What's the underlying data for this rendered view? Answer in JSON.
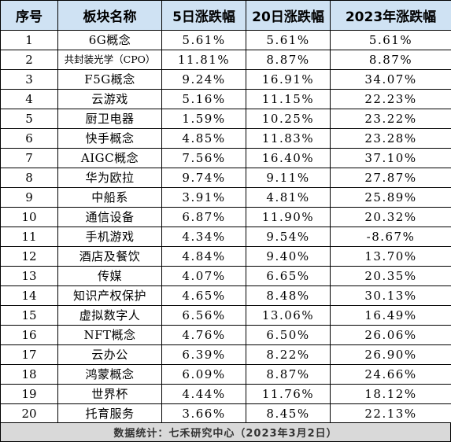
{
  "table": {
    "headers": [
      "序号",
      "板块名称",
      "5日涨跌幅",
      "20日涨跌幅",
      "2023年涨跌幅"
    ],
    "rows": [
      {
        "index": "1",
        "name": "6G概念",
        "d5": "5.61%",
        "d20": "5.61%",
        "ytd": "5.61%"
      },
      {
        "index": "2",
        "name": "共封装光学（CPO）",
        "d5": "11.81%",
        "d20": "8.87%",
        "ytd": "8.87%"
      },
      {
        "index": "3",
        "name": "F5G概念",
        "d5": "9.24%",
        "d20": "16.91%",
        "ytd": "34.07%"
      },
      {
        "index": "4",
        "name": "云游戏",
        "d5": "5.16%",
        "d20": "11.15%",
        "ytd": "22.23%"
      },
      {
        "index": "5",
        "name": "厨卫电器",
        "d5": "1.59%",
        "d20": "10.25%",
        "ytd": "23.22%"
      },
      {
        "index": "6",
        "name": "快手概念",
        "d5": "4.85%",
        "d20": "11.83%",
        "ytd": "23.28%"
      },
      {
        "index": "7",
        "name": "AIGC概念",
        "d5": "7.56%",
        "d20": "16.40%",
        "ytd": "37.10%"
      },
      {
        "index": "8",
        "name": "华为欧拉",
        "d5": "9.74%",
        "d20": "9.11%",
        "ytd": "27.87%"
      },
      {
        "index": "9",
        "name": "中船系",
        "d5": "3.91%",
        "d20": "4.81%",
        "ytd": "25.89%"
      },
      {
        "index": "10",
        "name": "通信设备",
        "d5": "6.87%",
        "d20": "11.90%",
        "ytd": "20.32%"
      },
      {
        "index": "11",
        "name": "手机游戏",
        "d5": "4.34%",
        "d20": "9.54%",
        "ytd": "-8.67%"
      },
      {
        "index": "12",
        "name": "酒店及餐饮",
        "d5": "4.84%",
        "d20": "9.40%",
        "ytd": "13.70%"
      },
      {
        "index": "13",
        "name": "传媒",
        "d5": "4.07%",
        "d20": "6.65%",
        "ytd": "20.35%"
      },
      {
        "index": "14",
        "name": "知识产权保护",
        "d5": "4.65%",
        "d20": "8.48%",
        "ytd": "30.13%"
      },
      {
        "index": "15",
        "name": "虚拟数字人",
        "d5": "6.56%",
        "d20": "13.06%",
        "ytd": "16.49%"
      },
      {
        "index": "16",
        "name": "NFT概念",
        "d5": "4.76%",
        "d20": "6.50%",
        "ytd": "26.06%"
      },
      {
        "index": "17",
        "name": "云办公",
        "d5": "6.39%",
        "d20": "8.22%",
        "ytd": "26.90%"
      },
      {
        "index": "18",
        "name": "鸿蒙概念",
        "d5": "6.09%",
        "d20": "8.87%",
        "ytd": "24.66%"
      },
      {
        "index": "19",
        "name": "世界杯",
        "d5": "4.44%",
        "d20": "11.76%",
        "ytd": "18.12%"
      },
      {
        "index": "20",
        "name": "托育服务",
        "d5": "3.66%",
        "d20": "8.45%",
        "ytd": "22.13%"
      }
    ]
  },
  "footer": {
    "source": "数据统计：七禾研究中心（2023年3月2日）"
  },
  "colors": {
    "header_bg": "#cfe2f3",
    "footer_bg": "#d9d9d9",
    "grid_line": "#000000"
  }
}
